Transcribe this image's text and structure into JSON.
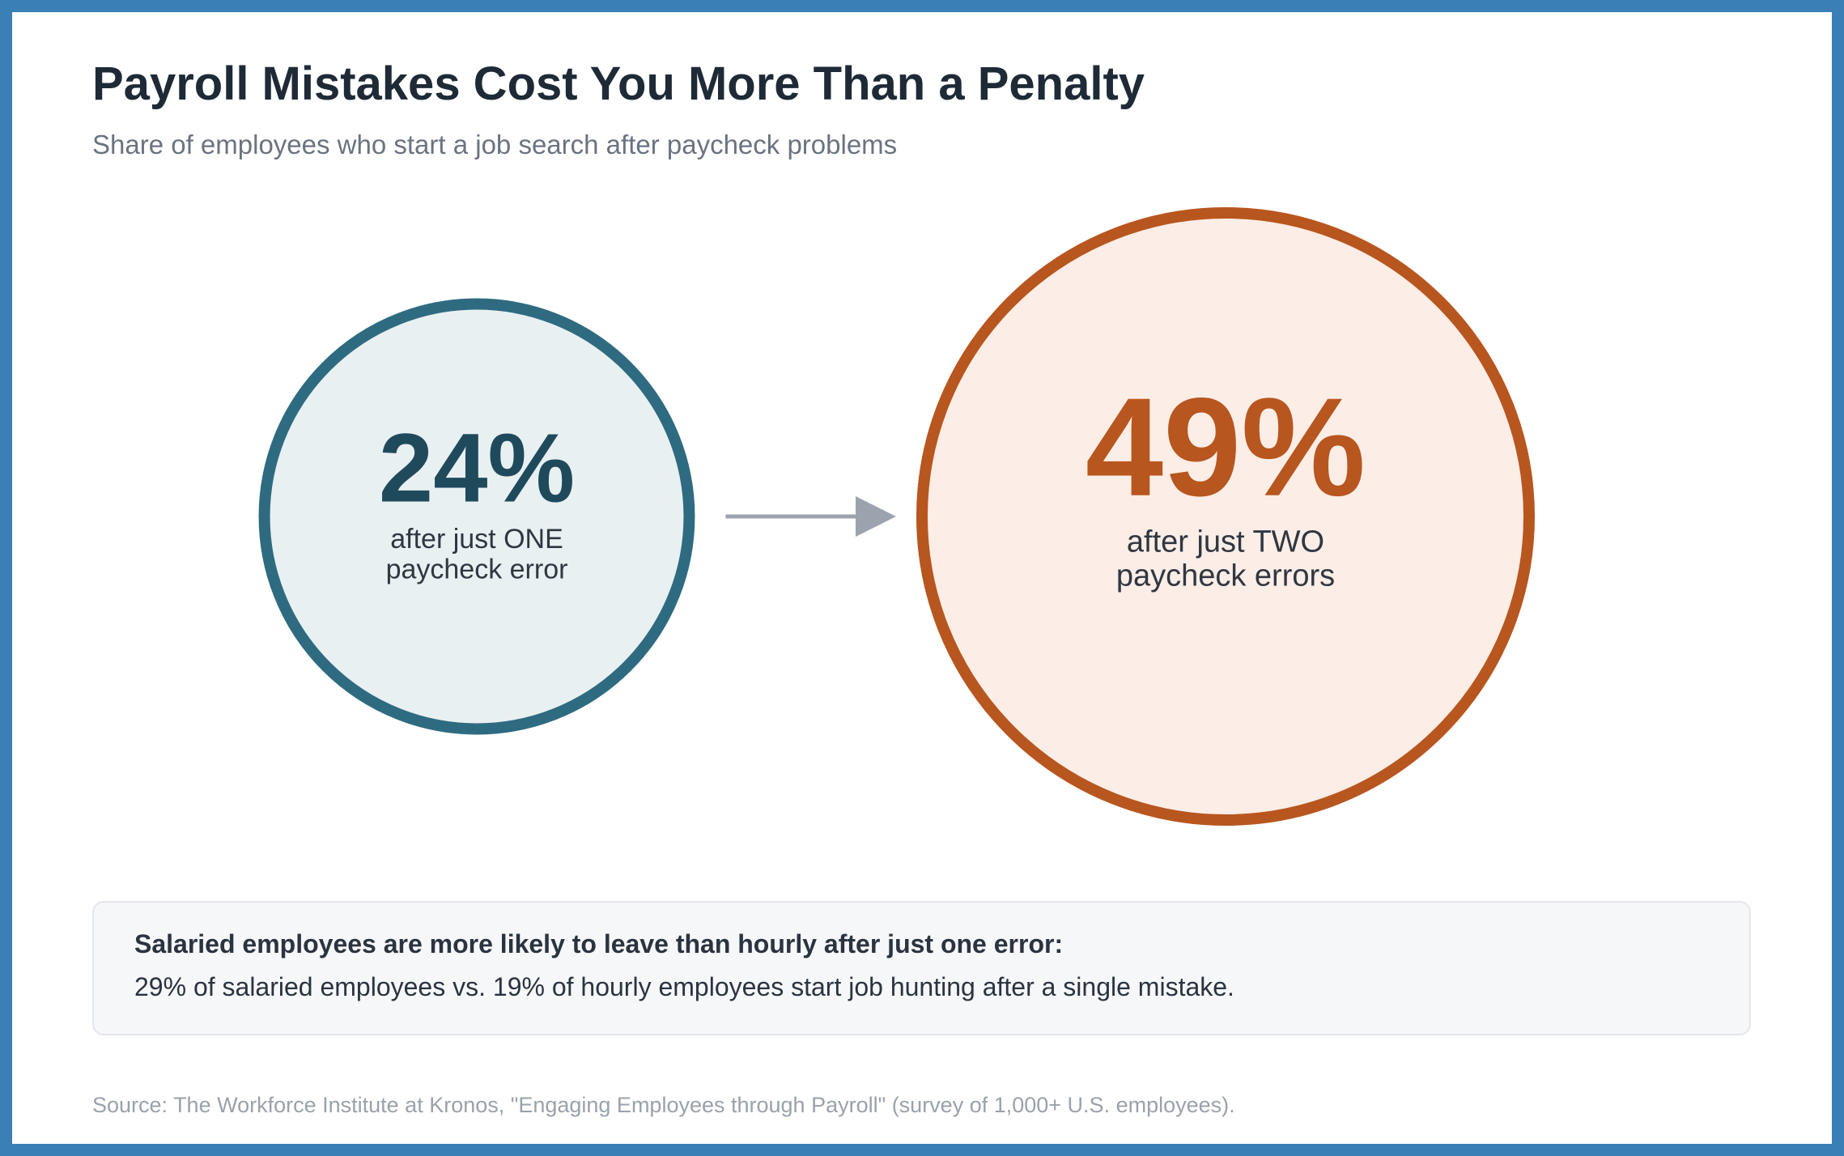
{
  "title": "Payroll Mistakes Cost You More Than a Penalty",
  "subtitle": "Share of employees who start a job search after paycheck problems",
  "colors": {
    "frame": "#3a7fb6",
    "one_error_stroke": "#2e6b80",
    "one_error_fill": "#e9f0f2",
    "one_error_text": "#1f4a5c",
    "two_errors_stroke": "#b8561f",
    "two_errors_fill": "#fcede6",
    "two_errors_text": "#b8561f",
    "arrow": "#9ca3af"
  },
  "chart_data": {
    "type": "bubble-comparison",
    "title": "Payroll Mistakes Cost You More Than a Penalty",
    "subtitle": "Share of employees who start a job search after paycheck problems",
    "unit": "%",
    "items": [
      {
        "value": 24,
        "value_label": "24%",
        "caption_line1": "after just ONE",
        "caption_line2": "paycheck error"
      },
      {
        "value": 49,
        "value_label": "49%",
        "caption_line1": "after just TWO",
        "caption_line2": "paycheck errors"
      }
    ],
    "connector": "arrow"
  },
  "callout": {
    "heading": "Salaried employees are more likely to leave than hourly after just one error:",
    "body": "29% of salaried employees vs. 19% of hourly employees start job hunting after a single mistake."
  },
  "source": "Source: The Workforce Institute at Kronos, \"Engaging Employees through Payroll\" (survey of 1,000+ U.S. employees)."
}
